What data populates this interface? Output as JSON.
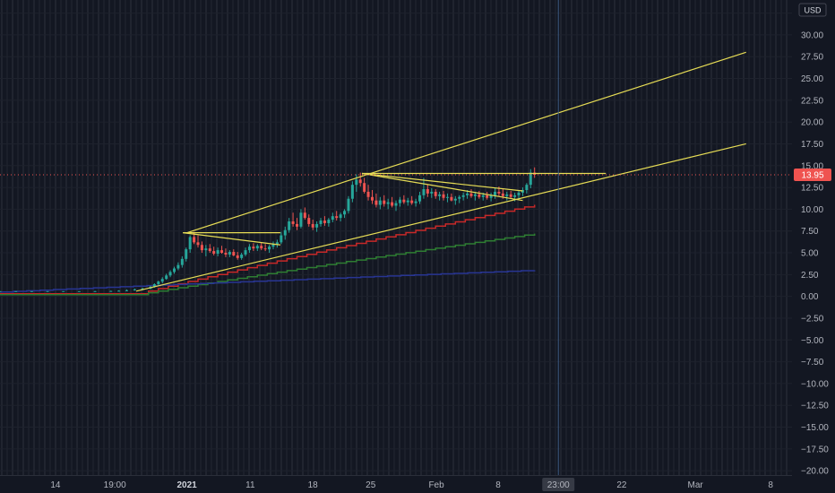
{
  "chart_data": {
    "type": "candlestick",
    "currency": "USD",
    "last_price_label": "13.95",
    "last_price": 13.95,
    "cursor_time_label": "23:00",
    "y_range": [
      -20.5,
      34
    ],
    "y_ticks": [
      "32.50",
      "30.00",
      "27.50",
      "25.00",
      "22.50",
      "20.00",
      "17.50",
      "15.00",
      "12.50",
      "10.00",
      "7.50",
      "5.00",
      "2.50",
      "0.00",
      "−2.50",
      "−5.00",
      "−7.50",
      "−10.00",
      "−12.50",
      "−15.00",
      "−17.50",
      "−20.00"
    ],
    "y_tick_values": [
      32.5,
      30,
      27.5,
      25,
      22.5,
      20,
      17.5,
      15,
      12.5,
      10,
      7.5,
      5,
      2.5,
      0,
      -2.5,
      -5,
      -7.5,
      -10,
      -12.5,
      -15,
      -17.5,
      -20
    ],
    "x_range": [
      0,
      100
    ],
    "x_ticks": [
      {
        "label": "14",
        "x": 7,
        "bold": false
      },
      {
        "label": "19:00",
        "x": 14.5,
        "bold": false
      },
      {
        "label": "2021",
        "x": 23.6,
        "bold": true
      },
      {
        "label": "11",
        "x": 31.6,
        "bold": false
      },
      {
        "label": "18",
        "x": 39.5,
        "bold": false
      },
      {
        "label": "25",
        "x": 46.8,
        "bold": false
      },
      {
        "label": "Feb",
        "x": 55.1,
        "bold": false
      },
      {
        "label": "8",
        "x": 62.9,
        "bold": false
      },
      {
        "label": "22",
        "x": 78.5,
        "bold": false
      },
      {
        "label": "Mar",
        "x": 87.8,
        "bold": false
      },
      {
        "label": "8",
        "x": 97.3,
        "bold": false
      }
    ],
    "cursor_x": 70.5,
    "candles": [
      [
        0,
        0.6,
        0.6,
        0.6,
        0.6
      ],
      [
        2,
        0.6,
        0.6,
        0.6,
        0.6
      ],
      [
        4,
        0.6,
        0.6,
        0.6,
        0.6
      ],
      [
        6,
        0.6,
        0.6,
        0.6,
        0.6
      ],
      [
        8,
        0.6,
        0.6,
        0.6,
        0.6
      ],
      [
        10,
        0.6,
        0.6,
        0.6,
        0.6
      ],
      [
        12,
        0.6,
        0.62,
        0.58,
        0.6
      ],
      [
        14,
        0.6,
        0.65,
        0.58,
        0.62
      ],
      [
        15,
        0.62,
        0.7,
        0.6,
        0.65
      ],
      [
        16,
        0.65,
        0.8,
        0.6,
        0.7
      ],
      [
        17,
        0.7,
        0.9,
        0.65,
        0.8
      ],
      [
        18,
        0.8,
        1.0,
        0.7,
        0.9
      ],
      [
        19,
        0.9,
        1.2,
        0.8,
        1.1
      ],
      [
        19.5,
        1.1,
        1.5,
        1.0,
        1.4
      ],
      [
        20,
        1.4,
        1.8,
        1.3,
        1.7
      ],
      [
        20.5,
        1.7,
        2.2,
        1.5,
        2.0
      ],
      [
        21,
        2.0,
        2.6,
        1.9,
        2.4
      ],
      [
        21.5,
        2.4,
        3.0,
        2.2,
        2.8
      ],
      [
        22,
        2.8,
        3.4,
        2.6,
        3.2
      ],
      [
        22.5,
        3.2,
        3.9,
        3.0,
        3.6
      ],
      [
        23,
        3.6,
        4.6,
        3.3,
        4.3
      ],
      [
        23.5,
        4.3,
        5.6,
        4.0,
        5.4
      ],
      [
        24,
        5.4,
        7.0,
        5.0,
        6.8
      ],
      [
        24.5,
        6.8,
        7.4,
        6.0,
        6.2
      ],
      [
        25,
        6.2,
        7.0,
        5.6,
        5.9
      ],
      [
        25.5,
        5.9,
        6.3,
        5.0,
        5.3
      ],
      [
        26,
        5.3,
        5.9,
        4.6,
        5.5
      ],
      [
        26.5,
        5.5,
        6.0,
        5.0,
        5.2
      ],
      [
        27,
        5.2,
        5.7,
        4.7,
        4.9
      ],
      [
        27.5,
        4.9,
        5.6,
        4.6,
        5.3
      ],
      [
        28,
        5.3,
        5.8,
        4.9,
        5.0
      ],
      [
        28.5,
        5.0,
        5.5,
        4.5,
        4.8
      ],
      [
        29,
        4.8,
        5.3,
        4.5,
        5.1
      ],
      [
        29.5,
        5.1,
        5.4,
        4.6,
        4.7
      ],
      [
        30,
        4.7,
        5.1,
        4.2,
        4.4
      ],
      [
        30.5,
        4.4,
        5.0,
        4.2,
        4.8
      ],
      [
        31,
        4.8,
        5.6,
        4.6,
        5.3
      ],
      [
        31.5,
        5.3,
        6.0,
        5.0,
        5.7
      ],
      [
        32,
        5.7,
        6.1,
        5.2,
        5.5
      ],
      [
        32.5,
        5.5,
        6.0,
        5.2,
        5.8
      ],
      [
        33,
        5.8,
        6.2,
        5.3,
        5.5
      ],
      [
        33.5,
        5.5,
        6.0,
        5.2,
        5.4
      ],
      [
        34,
        5.4,
        5.9,
        5.0,
        5.7
      ],
      [
        34.5,
        5.7,
        6.3,
        5.4,
        6.0
      ],
      [
        35,
        6.0,
        6.5,
        5.6,
        6.2
      ],
      [
        35.5,
        6.2,
        7.4,
        6.0,
        7.0
      ],
      [
        36,
        7.0,
        8.0,
        6.5,
        7.6
      ],
      [
        36.5,
        7.6,
        9.0,
        7.3,
        8.6
      ],
      [
        37,
        8.6,
        9.6,
        8.0,
        8.3
      ],
      [
        37.5,
        8.3,
        9.0,
        7.6,
        8.0
      ],
      [
        38,
        8.0,
        10.0,
        7.8,
        9.6
      ],
      [
        38.5,
        9.6,
        10.2,
        8.8,
        9.0
      ],
      [
        39,
        9.0,
        9.4,
        8.0,
        8.3
      ],
      [
        39.5,
        8.3,
        8.8,
        7.6,
        7.9
      ],
      [
        40,
        7.9,
        8.6,
        7.4,
        8.3
      ],
      [
        40.5,
        8.3,
        9.0,
        8.0,
        8.7
      ],
      [
        41,
        8.7,
        9.2,
        8.1,
        8.4
      ],
      [
        41.5,
        8.4,
        9.0,
        8.0,
        8.8
      ],
      [
        42,
        8.8,
        9.6,
        8.5,
        9.2
      ],
      [
        42.5,
        9.2,
        9.8,
        8.7,
        9.0
      ],
      [
        43,
        9.0,
        9.6,
        8.6,
        9.4
      ],
      [
        43.5,
        9.4,
        10.0,
        9.0,
        9.8
      ],
      [
        44,
        9.8,
        11.5,
        9.5,
        11.2
      ],
      [
        44.5,
        11.2,
        13.2,
        10.8,
        12.8
      ],
      [
        45,
        12.8,
        14.0,
        12.0,
        13.4
      ],
      [
        45.5,
        13.4,
        14.2,
        12.6,
        13.0
      ],
      [
        46,
        13.0,
        13.6,
        11.8,
        12.0
      ],
      [
        46.5,
        12.0,
        12.8,
        11.0,
        11.4
      ],
      [
        47,
        11.4,
        12.2,
        10.6,
        11.0
      ],
      [
        47.5,
        11.0,
        11.8,
        10.2,
        10.5
      ],
      [
        48,
        10.5,
        11.4,
        10.0,
        11.0
      ],
      [
        48.5,
        11.0,
        11.6,
        10.3,
        10.6
      ],
      [
        49,
        10.6,
        11.2,
        10.0,
        10.8
      ],
      [
        49.5,
        10.8,
        11.4,
        10.2,
        10.4
      ],
      [
        50,
        10.4,
        11.0,
        9.8,
        10.7
      ],
      [
        50.5,
        10.7,
        11.4,
        10.3,
        11.1
      ],
      [
        51,
        11.1,
        11.6,
        10.6,
        10.8
      ],
      [
        51.5,
        10.8,
        11.3,
        10.4,
        11.0
      ],
      [
        52,
        11.0,
        11.5,
        10.5,
        10.7
      ],
      [
        52.5,
        10.7,
        11.2,
        10.3,
        10.9
      ],
      [
        53,
        10.9,
        12.0,
        10.6,
        11.6
      ],
      [
        53.5,
        11.6,
        13.6,
        11.2,
        12.3
      ],
      [
        54,
        12.3,
        12.8,
        11.4,
        11.8
      ],
      [
        54.5,
        11.8,
        12.4,
        11.3,
        12.0
      ],
      [
        55,
        12.0,
        12.3,
        11.2,
        11.5
      ],
      [
        55.5,
        11.5,
        12.0,
        11.0,
        11.7
      ],
      [
        56,
        11.7,
        12.1,
        11.0,
        11.3
      ],
      [
        56.5,
        11.3,
        11.8,
        10.8,
        11.4
      ],
      [
        57,
        11.4,
        11.8,
        10.9,
        11.0
      ],
      [
        57.5,
        11.0,
        11.5,
        10.5,
        11.2
      ],
      [
        58,
        11.2,
        11.6,
        10.7,
        11.4
      ],
      [
        58.5,
        11.4,
        11.9,
        11.0,
        11.6
      ],
      [
        59,
        11.6,
        12.2,
        11.2,
        11.8
      ],
      [
        59.5,
        11.8,
        12.3,
        11.3,
        11.5
      ],
      [
        60,
        11.5,
        12.0,
        11.0,
        11.7
      ],
      [
        60.5,
        11.7,
        12.1,
        11.2,
        11.4
      ],
      [
        61,
        11.4,
        11.9,
        11.0,
        11.6
      ],
      [
        61.5,
        11.6,
        12.0,
        11.1,
        11.3
      ],
      [
        62,
        11.3,
        11.9,
        10.9,
        11.6
      ],
      [
        62.5,
        11.6,
        12.4,
        11.2,
        12.0
      ],
      [
        63,
        12.0,
        12.6,
        11.5,
        11.8
      ],
      [
        63.5,
        11.8,
        12.3,
        11.2,
        11.5
      ],
      [
        64,
        11.5,
        12.0,
        11.0,
        11.7
      ],
      [
        64.5,
        11.7,
        12.1,
        11.2,
        11.4
      ],
      [
        65,
        11.4,
        11.9,
        10.9,
        11.6
      ],
      [
        65.5,
        11.6,
        12.2,
        11.2,
        11.9
      ],
      [
        66,
        11.9,
        12.5,
        11.5,
        12.2
      ],
      [
        66.5,
        12.2,
        13.0,
        11.8,
        12.8
      ],
      [
        67,
        12.8,
        14.6,
        12.4,
        14.2
      ],
      [
        67.5,
        14.2,
        14.8,
        13.6,
        13.95
      ]
    ],
    "trendlines": [
      {
        "name": "upper",
        "color": "#e6dc55",
        "points": [
          [
            23.6,
            7.3
          ],
          [
            94.2,
            28.0
          ]
        ]
      },
      {
        "name": "lower",
        "color": "#e6dc55",
        "points": [
          [
            17.2,
            0.6
          ],
          [
            94.2,
            17.5
          ]
        ]
      },
      {
        "name": "top-horizontal",
        "color": "#e6dc55",
        "points": [
          [
            45.7,
            14.1
          ],
          [
            76.5,
            14.1
          ]
        ]
      },
      {
        "name": "pennant-a-top",
        "color": "#e6dc55",
        "points": [
          [
            23.1,
            7.3
          ],
          [
            35.4,
            7.3
          ]
        ]
      },
      {
        "name": "pennant-a-bottom",
        "color": "#e6dc55",
        "points": [
          [
            23.1,
            7.3
          ],
          [
            35.4,
            5.9
          ]
        ]
      },
      {
        "name": "pennant-b-top",
        "color": "#e6dc55",
        "points": [
          [
            45.7,
            14.1
          ],
          [
            66.0,
            12.1
          ]
        ]
      },
      {
        "name": "pennant-b-bottom",
        "color": "#e6dc55",
        "points": [
          [
            45.7,
            14.1
          ],
          [
            66.0,
            11.0
          ]
        ]
      }
    ],
    "step_lines": [
      {
        "name": "red",
        "color": "#c62828",
        "from": [
          17.5,
          0.3
        ],
        "to": [
          67.5,
          10.5
        ]
      },
      {
        "name": "green",
        "color": "#2e7d32",
        "from": [
          17.5,
          0.2
        ],
        "to": [
          67.5,
          7.2
        ]
      },
      {
        "name": "blue",
        "color": "#283593",
        "from": [
          0,
          0.5
        ],
        "to": [
          67.5,
          3.0
        ]
      }
    ],
    "colors": {
      "background": "#131722",
      "grid": "#1e222d",
      "up_candle": "#26a69a",
      "down_candle": "#ef5350",
      "trendline": "#e6dc55",
      "price_badge": "#ef5350",
      "axis_text": "#b2b5be"
    }
  }
}
